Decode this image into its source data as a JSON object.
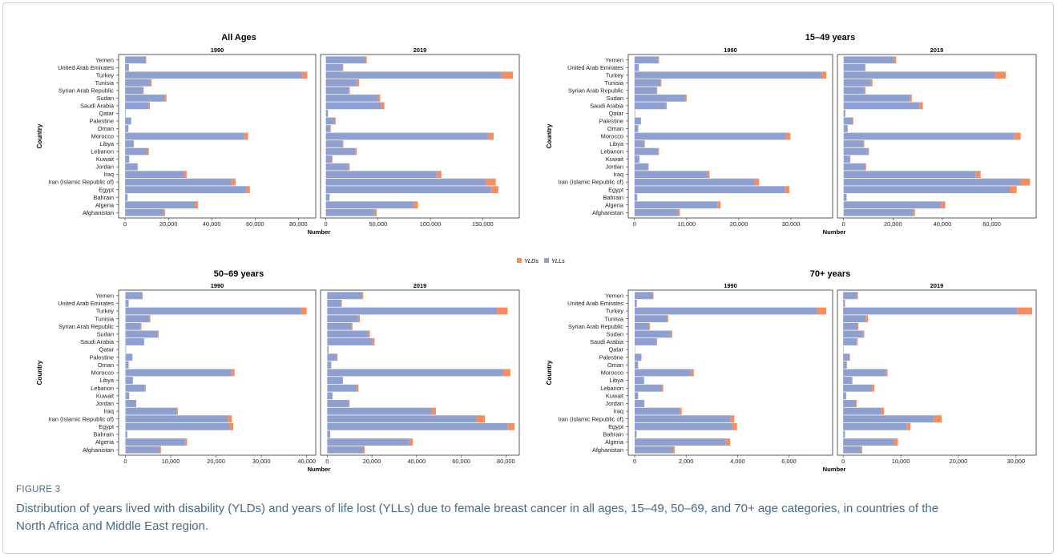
{
  "figure": {
    "label": "FIGURE 3",
    "caption": "Distribution of years lived with disability (YLDs) and years of life lost (YLLs) due to female breast cancer in all ages, 15–49, 50–69, and 70+ age categories, in countries of the North Africa and Middle East region."
  },
  "legend": [
    {
      "key": "yld",
      "label": "YLDs",
      "color": "#f28e62"
    },
    {
      "key": "yll",
      "label": "YLLs",
      "color": "#8f9fcf"
    }
  ],
  "chart_data": {
    "type": "bar",
    "orientation": "horizontal",
    "stacked": true,
    "countries": [
      "Yemen",
      "United Arab Emirates",
      "Turkey",
      "Tunisia",
      "Syrian Arab Republic",
      "Sudan",
      "Saudi Arabia",
      "Qatar",
      "Palestine",
      "Oman",
      "Morocco",
      "Libya",
      "Lebanon",
      "Kuwait",
      "Jordan",
      "Iraq",
      "Iran (Islamic Republic of)",
      "Egypt",
      "Bahrain",
      "Algeria",
      "Afghanistan"
    ],
    "ylabel": "Country",
    "xlabel": "Number",
    "legend_position": "top-center",
    "panels": [
      {
        "title": "All Ages",
        "facets": [
          {
            "year": "1990",
            "xlim": [
              -3000,
              88000
            ],
            "ticks": [
              0,
              20000,
              40000,
              60000,
              80000
            ],
            "tick_labels": [
              "0",
              "20,000",
              "40,000",
              "60,000",
              "80,000"
            ],
            "yll": [
              9600,
              1700,
              81500,
              11600,
              8300,
              18300,
              10900,
              300,
              2700,
              1500,
              55000,
              3900,
              10300,
              1800,
              5600,
              27300,
              49000,
              55800,
              1100,
              32500,
              17800
            ],
            "yld": [
              150,
              100,
              2600,
              650,
              300,
              800,
              550,
              50,
              150,
              80,
              1800,
              200,
              650,
              100,
              250,
              1100,
              2000,
              1800,
              60,
              1200,
              650
            ]
          },
          {
            "year": "2019",
            "xlim": [
              -5000,
              185000
            ],
            "ticks": [
              0,
              50000,
              100000,
              150000
            ],
            "tick_labels": [
              "0",
              "50,000",
              "100,000",
              "150,000"
            ],
            "yll": [
              38000,
              16000,
              168000,
              30000,
              22000,
              50000,
              53000,
              2000,
              9000,
              4500,
              155000,
              16000,
              28000,
              6000,
              21500,
              106000,
              153000,
              158000,
              3500,
              84000,
              47000
            ],
            "yld": [
              1200,
              700,
              11000,
              2000,
              1000,
              2000,
              3000,
              200,
              600,
              300,
              5500,
              900,
              1500,
              400,
              1300,
              4500,
              9500,
              7000,
              250,
              4000,
              1700
            ]
          }
        ]
      },
      {
        "title": "15–49 years",
        "facets": [
          {
            "year": "1990",
            "xlim": [
              -1200,
              38000
            ],
            "ticks": [
              0,
              10000,
              20000,
              30000
            ],
            "tick_labels": [
              "0",
              "10,000",
              "20,000",
              "30,000"
            ],
            "yll": [
              4600,
              800,
              35800,
              5000,
              4200,
              9700,
              6000,
              100,
              1200,
              700,
              29000,
              1900,
              4500,
              900,
              2600,
              14000,
              23000,
              28800,
              500,
              15900,
              8400
            ],
            "yld": [
              100,
              30,
              1000,
              150,
              150,
              300,
              200,
              10,
              50,
              30,
              900,
              80,
              200,
              50,
              120,
              400,
              900,
              900,
              20,
              600,
              300
            ]
          },
          {
            "year": "2019",
            "xlim": [
              -2500,
              78000
            ],
            "ticks": [
              0,
              20000,
              40000,
              60000
            ],
            "tick_labels": [
              "0",
              "20,000",
              "40,000",
              "60,000"
            ],
            "yll": [
              20500,
              8600,
              61500,
              11000,
              8400,
              26800,
              30700,
              700,
              3700,
              1600,
              69000,
              8000,
              9800,
              2600,
              8700,
              53600,
              71500,
              67300,
              1200,
              39500,
              28000
            ],
            "yld": [
              800,
              300,
              4200,
              700,
              500,
              800,
              1400,
              50,
              250,
              100,
              2700,
              400,
              500,
              150,
              400,
              1900,
              4000,
              2800,
              50,
              1700,
              900
            ]
          }
        ]
      },
      {
        "title": "50–69 years",
        "facets": [
          {
            "year": "1990",
            "xlim": [
              -1500,
              42000
            ],
            "ticks": [
              0,
              10000,
              20000,
              30000,
              40000
            ],
            "tick_labels": [
              "0",
              "10,000",
              "20,000",
              "30,000",
              "40,000"
            ],
            "yll": [
              3700,
              700,
              38800,
              5300,
              3400,
              7100,
              4000,
              150,
              1500,
              700,
              23400,
              1600,
              4300,
              800,
              2300,
              11300,
              22600,
              23000,
              400,
              13200,
              7600
            ],
            "yld": [
              120,
              40,
              1200,
              200,
              150,
              250,
              150,
              10,
              50,
              30,
              700,
              80,
              180,
              40,
              100,
              300,
              900,
              800,
              20,
              400,
              250
            ]
          },
          {
            "year": "2019",
            "xlim": [
              -3000,
              86000
            ],
            "ticks": [
              0,
              20000,
              40000,
              60000,
              80000
            ],
            "tick_labels": [
              "0",
              "20,000",
              "40,000",
              "60,000",
              "80,000"
            ],
            "yll": [
              15500,
              6300,
              76000,
              13800,
              10800,
              18400,
              20200,
              600,
              4400,
              1700,
              78800,
              6700,
              13300,
              2300,
              9500,
              46700,
              66800,
              80700,
              1300,
              36800,
              16200
            ],
            "yld": [
              600,
              250,
              4800,
              800,
              500,
              700,
              1000,
              40,
              200,
              80,
              3200,
              350,
              700,
              120,
              500,
              2000,
              3800,
              3200,
              60,
              1500,
              600
            ]
          }
        ]
      },
      {
        "title": "70+ years",
        "facets": [
          {
            "year": "1990",
            "xlim": [
              -250,
              7700
            ],
            "ticks": [
              0,
              2000,
              4000,
              6000
            ],
            "tick_labels": [
              "0",
              "2,000",
              "4,000",
              "6,000"
            ],
            "yll": [
              700,
              80,
              7100,
              1250,
              560,
              1400,
              830,
              15,
              250,
              130,
              2200,
              350,
              1060,
              130,
              360,
              1750,
              3720,
              3800,
              70,
              3550,
              1500
            ],
            "yld": [
              30,
              5,
              350,
              60,
              30,
              60,
              40,
              2,
              15,
              8,
              100,
              20,
              50,
              8,
              20,
              80,
              160,
              180,
              4,
              160,
              60
            ]
          },
          {
            "year": "2019",
            "xlim": [
              -1000,
              33500
            ],
            "ticks": [
              0,
              10000,
              20000,
              30000
            ],
            "tick_labels": [
              "0",
              "10,000",
              "20,000",
              "30,000"
            ],
            "yll": [
              2400,
              300,
              30200,
              3900,
              2500,
              3400,
              2300,
              70,
              1100,
              600,
              7400,
              1500,
              5000,
              500,
              2200,
              6600,
              15800,
              11000,
              300,
              8800,
              3100
            ],
            "yld": [
              150,
              30,
              2600,
              400,
              150,
              250,
              200,
              10,
              80,
              40,
              300,
              100,
              400,
              40,
              150,
              500,
              1300,
              700,
              20,
              700,
              200
            ]
          }
        ]
      }
    ]
  }
}
